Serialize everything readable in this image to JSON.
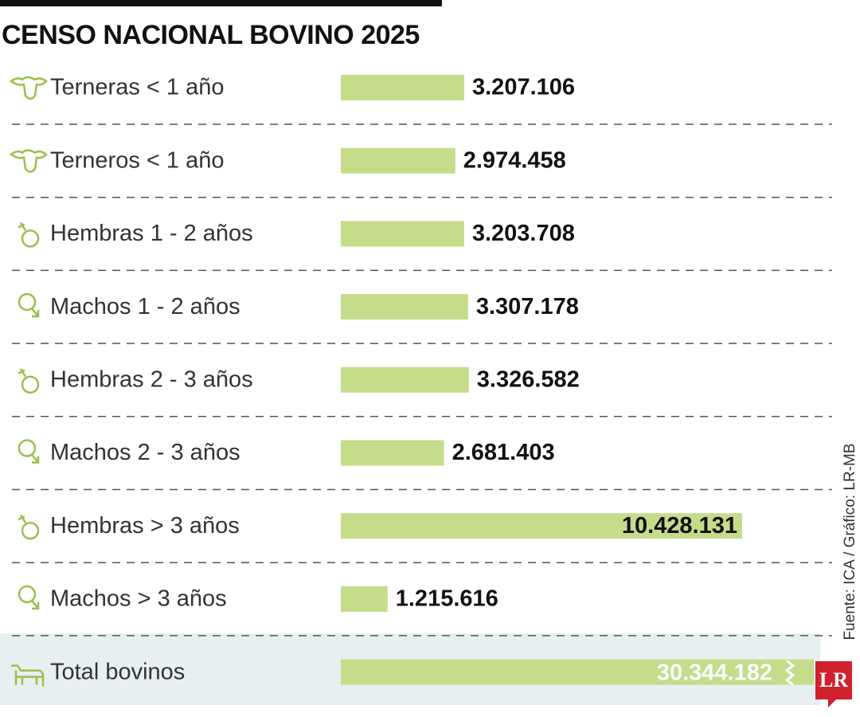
{
  "chart_data": {
    "type": "bar",
    "orientation": "horizontal",
    "title": "CENSO NACIONAL BOVINO 2025",
    "categories": [
      "Terneras < 1 año",
      "Terneros < 1 año",
      "Hembras 1 - 2 años",
      "Machos 1 - 2 años",
      "Hembras 2 - 3 años",
      "Machos 2 - 3 años",
      "Hembras > 3 años",
      "Machos > 3 años"
    ],
    "values": [
      3207106,
      2974458,
      3203708,
      3307178,
      3326582,
      2681403,
      10428131,
      1215616
    ],
    "value_labels": [
      "3.207.106",
      "2.974.458",
      "3.203.708",
      "3.307.178",
      "3.326.582",
      "2.681.403",
      "10.428.131",
      "1.215.616"
    ],
    "color": "#c5dc8a",
    "total": {
      "label": "Total bovinos",
      "value": 30344182,
      "value_label": "30.344.182"
    },
    "source": "Fuente: ICA / Gráfico: LR-MB"
  },
  "logo": "LR"
}
